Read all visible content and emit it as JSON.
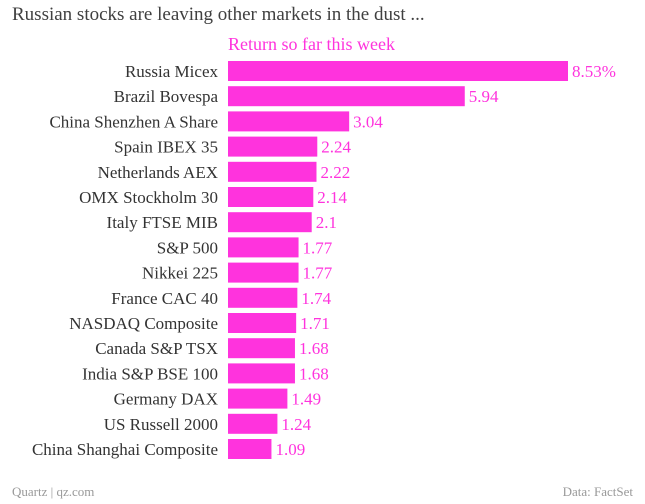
{
  "title": "Russian stocks are leaving other markets in the dust ...",
  "footer": {
    "source": "Quartz | qz.com",
    "data_credit": "Data: FactSet"
  },
  "colors": {
    "bar": "#ff33dd",
    "value_label": "#ff33dd"
  },
  "chart_data": {
    "type": "bar",
    "orientation": "horizontal",
    "title": "Russian stocks are leaving other markets in the dust ...",
    "series": [
      {
        "name": "Return so far this week",
        "values": [
          8.53,
          5.94,
          3.04,
          2.24,
          2.22,
          2.14,
          2.1,
          1.77,
          1.77,
          1.74,
          1.71,
          1.68,
          1.68,
          1.49,
          1.24,
          1.09
        ],
        "labels": [
          "8.53%",
          "5.94",
          "3.04",
          "2.24",
          "2.22",
          "2.14",
          "2.1",
          "1.77",
          "1.77",
          "1.74",
          "1.71",
          "1.68",
          "1.68",
          "1.49",
          "1.24",
          "1.09"
        ]
      }
    ],
    "categories": [
      "Russia Micex",
      "Brazil Bovespa",
      "China Shenzhen A Share",
      "Spain IBEX 35",
      "Netherlands AEX",
      "OMX Stockholm 30",
      "Italy FTSE MIB",
      "S&P 500",
      "Nikkei 225",
      "France CAC 40",
      "NASDAQ Composite",
      "Canada S&P TSX",
      "India S&P BSE 100",
      "Germany DAX",
      "US Russell 2000",
      "China Shanghai Composite"
    ],
    "xlim": [
      0,
      8.53
    ],
    "xlabel": "",
    "ylabel": "",
    "grid": false,
    "legend": "top"
  }
}
